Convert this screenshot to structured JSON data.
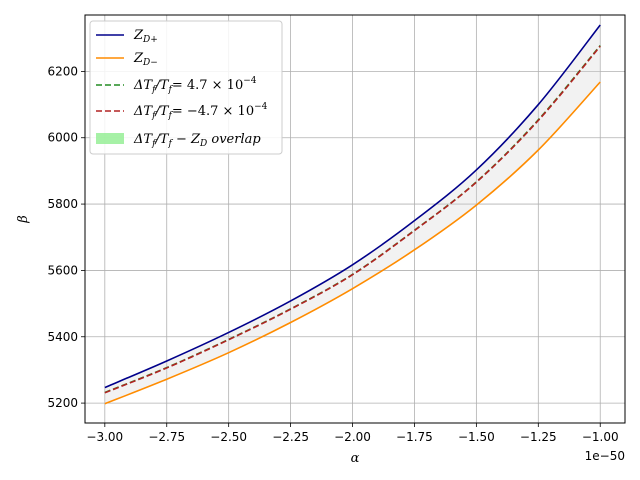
{
  "chart_data": {
    "type": "line",
    "xlabel": "α",
    "ylabel": "β",
    "x_offset_label": "1e−50",
    "xlim": [
      -3.08,
      -0.9
    ],
    "ylim": [
      5140,
      6370
    ],
    "x_ticks": [
      -3.0,
      -2.75,
      -2.5,
      -2.25,
      -2.0,
      -1.75,
      -1.5,
      -1.25,
      -1.0
    ],
    "x_tick_labels": [
      "−3.00",
      "−2.75",
      "−2.50",
      "−2.25",
      "−2.00",
      "−1.75",
      "−1.50",
      "−1.25",
      "−1.00"
    ],
    "y_ticks": [
      5200,
      5400,
      5600,
      5800,
      6000,
      6200
    ],
    "y_tick_labels": [
      "5200",
      "5400",
      "5600",
      "5800",
      "6000",
      "6200"
    ],
    "grid": true,
    "legend_position": "top-left",
    "x": [
      -3.0,
      -2.75,
      -2.5,
      -2.25,
      -2.0,
      -1.75,
      -1.5,
      -1.25,
      -1.0
    ],
    "series": [
      {
        "name": "Z_{D+}",
        "legend": {
          "main": "Z",
          "sub": "D+"
        },
        "style": "solid",
        "color": "#00008b",
        "values": [
          5247,
          5327,
          5413,
          5508,
          5617,
          5750,
          5903,
          6100,
          6340
        ]
      },
      {
        "name": "Z_{D−}",
        "legend": {
          "main": "Z",
          "sub": "D−"
        },
        "style": "solid",
        "color": "#ff8c00",
        "values": [
          5198,
          5272,
          5352,
          5443,
          5545,
          5662,
          5797,
          5963,
          6168
        ]
      },
      {
        "name": "ΔT_f/T_f = 4.7×10^−4",
        "legend": {
          "pre": "ΔT",
          "sub1": "f",
          "mid": "/T",
          "sub2": "f",
          "eq": "= 4.7 × 10",
          "sup": "−4"
        },
        "style": "dashed",
        "color": "#228b22",
        "values": [
          5232,
          5307,
          5392,
          5484,
          5588,
          5721,
          5867,
          6054,
          6278
        ]
      },
      {
        "name": "ΔT_f/T_f = −4.7×10^−4",
        "legend": {
          "pre": "ΔT",
          "sub1": "f",
          "mid": "/T",
          "sub2": "f",
          "eq": "= −4.7 × 10",
          "sup": "−4"
        },
        "style": "dashed",
        "color": "#b22222",
        "values": [
          5231,
          5306,
          5391,
          5483,
          5587,
          5720,
          5866,
          6052,
          6276
        ]
      }
    ],
    "band": {
      "name": "ΔT_f/T_f − Z_D overlap",
      "legend": {
        "pre": "ΔT",
        "sub1": "f",
        "mid": "/T",
        "sub2": "f",
        "rest": " − Z",
        "sub3": "D",
        "tail": " overlap"
      },
      "fill_color": "#d3d3d3",
      "legend_color": "#90ee90",
      "lower_series": 1,
      "upper_series": 0
    }
  }
}
